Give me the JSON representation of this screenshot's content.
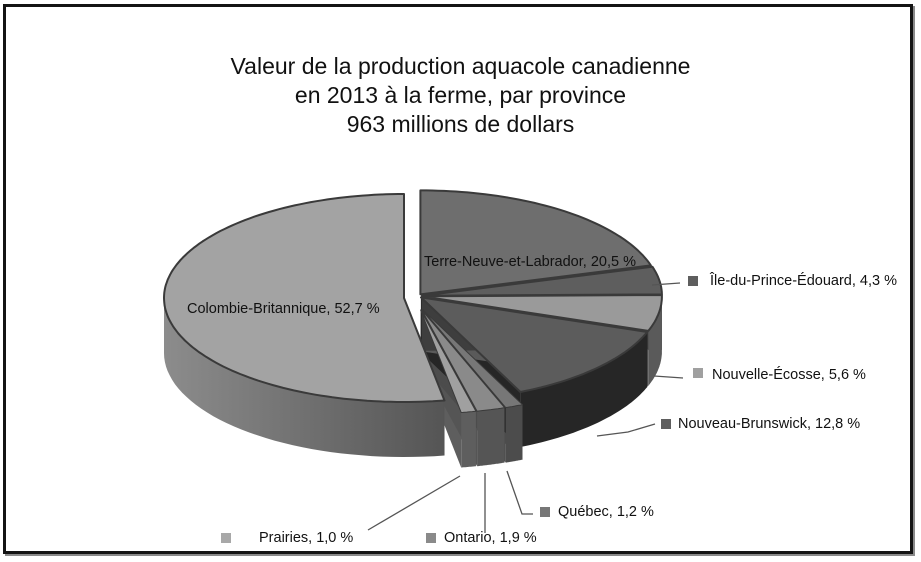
{
  "chart_data": {
    "type": "pie",
    "style": "3d-exploded",
    "title": "Valeur de la production aquacole canadienne en 2013 à la ferme, par province 963 millions de dollars",
    "title_lines": [
      "Valeur de la production aquacole canadienne",
      "en 2013 à la ferme, par province",
      "963 millions de dollars"
    ],
    "total": "963 millions de dollars",
    "unit": "%",
    "slices": [
      {
        "name": "Terre-Neuve-et-Labrador",
        "value": 20.5,
        "label": "Terre-Neuve-et-Labrador, 20,5 %",
        "color": "#6e6e6e",
        "side": "#4a4a4a"
      },
      {
        "name": "Île-du-Prince-Édouard",
        "value": 4.3,
        "label": "Île-du-Prince-Édouard, 4,3 %",
        "color": "#5e5e5e",
        "side": "#3e3e3e"
      },
      {
        "name": "Nouvelle-Écosse",
        "value": 5.6,
        "label": "Nouvelle-Écosse, 5,6 %",
        "color": "#9a9a9a",
        "side": "#5a5a5a"
      },
      {
        "name": "Nouveau-Brunswick",
        "value": 12.8,
        "label": "Nouveau-Brunswick, 12,8 %",
        "color": "#5c5c5c",
        "side": "#262626"
      },
      {
        "name": "Québec",
        "value": 1.2,
        "label": "Québec, 1,2 %",
        "color": "#777777",
        "side": "#4c4c4c"
      },
      {
        "name": "Ontario",
        "value": 1.9,
        "label": "Ontario, 1,9 %",
        "color": "#8a8a8a",
        "side": "#555555"
      },
      {
        "name": "Prairies",
        "value": 1.0,
        "label": "Prairies, 1,0 %",
        "color": "#a0a0a0",
        "side": "#5e5e5e"
      },
      {
        "name": "Colombie-Britannique",
        "value": 52.7,
        "label": "Colombie-Britannique, 52,7 %",
        "color": "#a3a3a3",
        "side": "#6f6f6f"
      }
    ],
    "legend_position": "callouts"
  }
}
